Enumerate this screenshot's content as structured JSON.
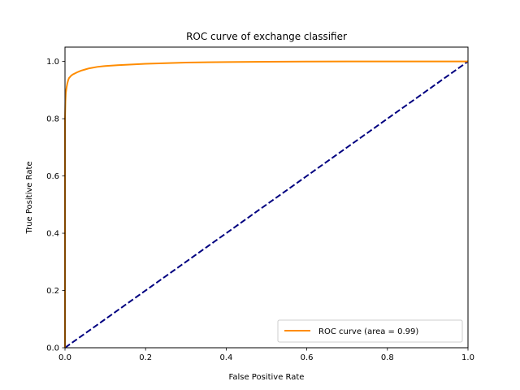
{
  "chart_data": {
    "type": "line",
    "title": "ROC curve of exchange classifier",
    "xlabel": "False Positive Rate",
    "ylabel": "True Positive Rate",
    "xlim": [
      0.0,
      1.0
    ],
    "ylim": [
      0.0,
      1.05
    ],
    "xticks": [
      "0.0",
      "0.2",
      "0.4",
      "0.6",
      "0.8",
      "1.0"
    ],
    "xtick_values": [
      0.0,
      0.2,
      0.4,
      0.6,
      0.8,
      1.0
    ],
    "yticks": [
      "0.0",
      "0.2",
      "0.4",
      "0.6",
      "0.8",
      "1.0"
    ],
    "ytick_values": [
      0.0,
      0.2,
      0.4,
      0.6,
      0.8,
      1.0
    ],
    "grid": false,
    "legend_position": "lower-right",
    "series": [
      {
        "name": "ROC curve (area = 0.99)",
        "color": "#ff8c00",
        "style": "solid",
        "x": [
          0.0,
          0.0,
          0.001,
          0.002,
          0.004,
          0.006,
          0.008,
          0.01,
          0.015,
          0.02,
          0.03,
          0.04,
          0.05,
          0.06,
          0.08,
          0.1,
          0.13,
          0.16,
          0.2,
          0.25,
          0.3,
          0.4,
          0.5,
          0.6,
          0.7,
          0.8,
          0.9,
          1.0
        ],
        "y": [
          0.0,
          0.8,
          0.86,
          0.89,
          0.91,
          0.925,
          0.935,
          0.942,
          0.95,
          0.955,
          0.962,
          0.968,
          0.972,
          0.976,
          0.981,
          0.984,
          0.987,
          0.989,
          0.992,
          0.994,
          0.996,
          0.998,
          0.999,
          0.9995,
          1.0,
          1.0,
          1.0,
          1.0
        ]
      },
      {
        "name": "",
        "color": "#000080",
        "style": "dashed",
        "x": [
          0.0,
          1.0
        ],
        "y": [
          0.0,
          1.0
        ]
      }
    ]
  }
}
